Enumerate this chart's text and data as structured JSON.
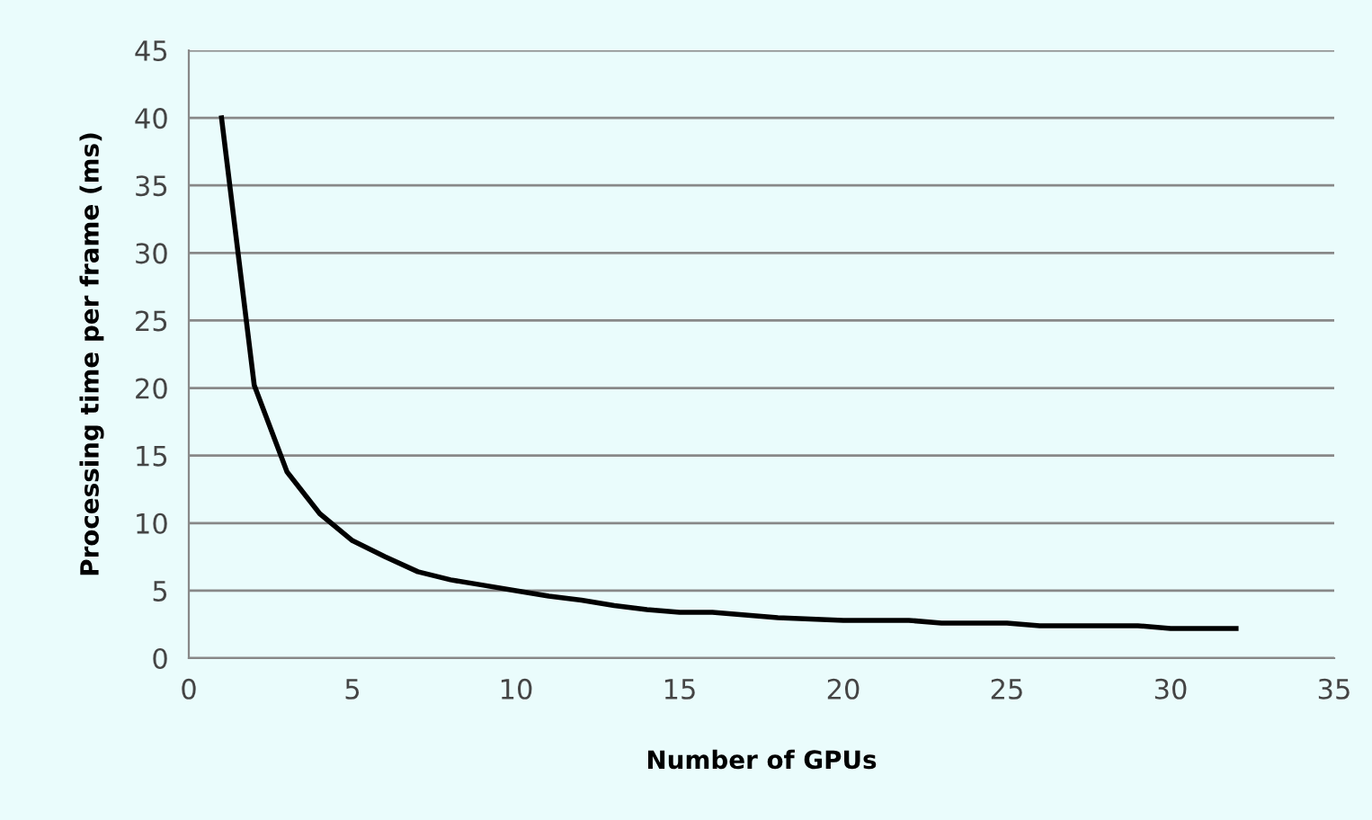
{
  "chart_data": {
    "type": "line",
    "xlabel": "Number of GPUs",
    "ylabel": "Processing time per frame (ms)",
    "x": [
      1,
      2,
      3,
      4,
      5,
      6,
      7,
      8,
      9,
      10,
      11,
      12,
      13,
      14,
      15,
      16,
      17,
      18,
      19,
      20,
      21,
      22,
      23,
      24,
      25,
      26,
      27,
      28,
      29,
      30,
      31,
      32
    ],
    "series": [
      {
        "color": "#000000",
        "values": [
          40,
          20.2,
          13.8,
          10.7,
          8.7,
          7.5,
          6.4,
          5.8,
          5.4,
          5.0,
          4.6,
          4.3,
          3.9,
          3.6,
          3.4,
          3.4,
          3.2,
          3.0,
          2.9,
          2.8,
          2.8,
          2.8,
          2.6,
          2.6,
          2.6,
          2.4,
          2.4,
          2.4,
          2.4,
          2.2,
          2.2,
          2.2
        ]
      }
    ],
    "xlim": [
      0,
      35
    ],
    "xticks": [
      0,
      5,
      10,
      15,
      20,
      25,
      30,
      35
    ],
    "ylim": [
      0,
      45
    ],
    "yticks": [
      0,
      5,
      10,
      15,
      20,
      25,
      30,
      35,
      40,
      45
    ],
    "grid": "y",
    "legend": false,
    "marker": "none",
    "line_style": "solid"
  }
}
